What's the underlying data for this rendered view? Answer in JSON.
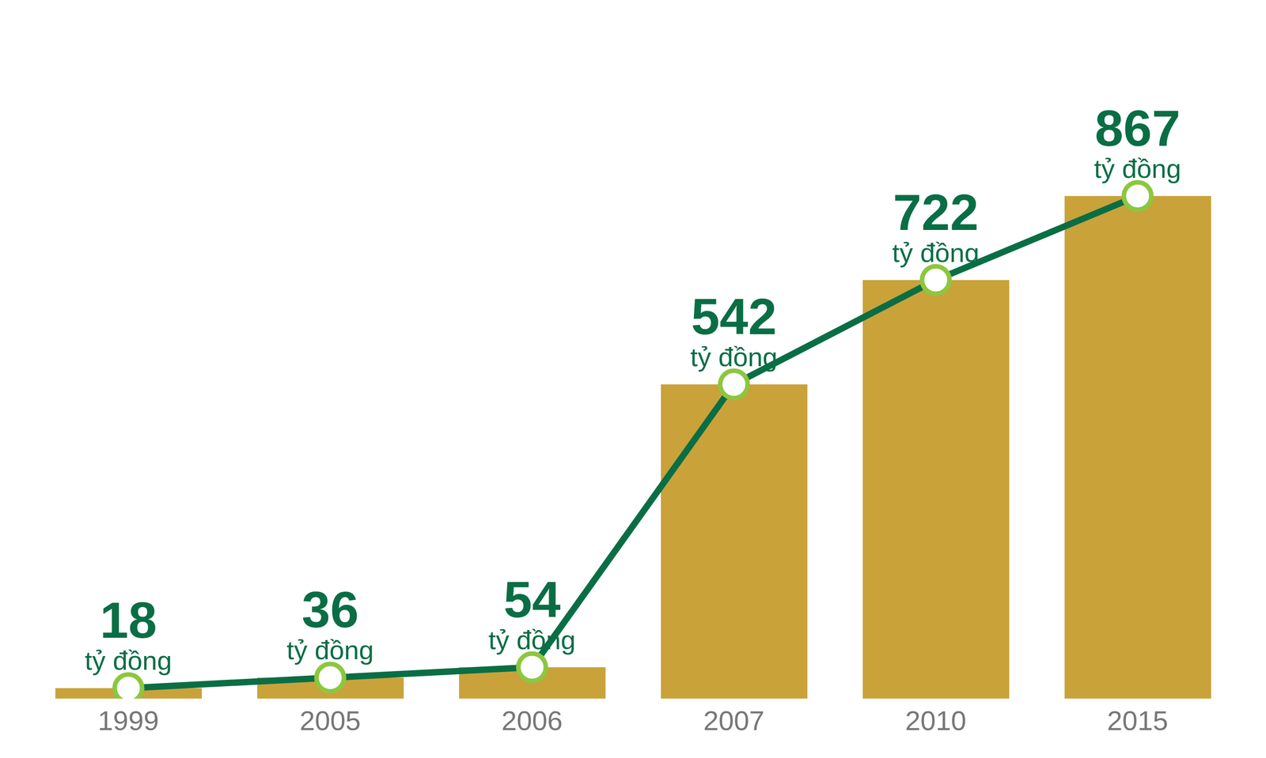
{
  "chart_data": {
    "type": "bar+line",
    "categories": [
      "1999",
      "2005",
      "2006",
      "2007",
      "2010",
      "2015"
    ],
    "series": [
      {
        "type": "bar",
        "color": "#c9a23a",
        "values": [
          18,
          36,
          54,
          542,
          722,
          867
        ]
      },
      {
        "type": "line",
        "color": "#0a6e45",
        "marker": "circle",
        "values": [
          18,
          36,
          54,
          542,
          722,
          867
        ],
        "value_labels": [
          "18 tỷ đồng",
          "36 tỷ đồng",
          "54 tỷ đồng",
          "542 tỷ đồng",
          "722 tỷ đồng",
          "867 tỷ đồng"
        ]
      }
    ],
    "ylim": [
      0,
      1000
    ],
    "yticks": [],
    "grid": false,
    "data_labels": true,
    "tick_labels": "x"
  }
}
